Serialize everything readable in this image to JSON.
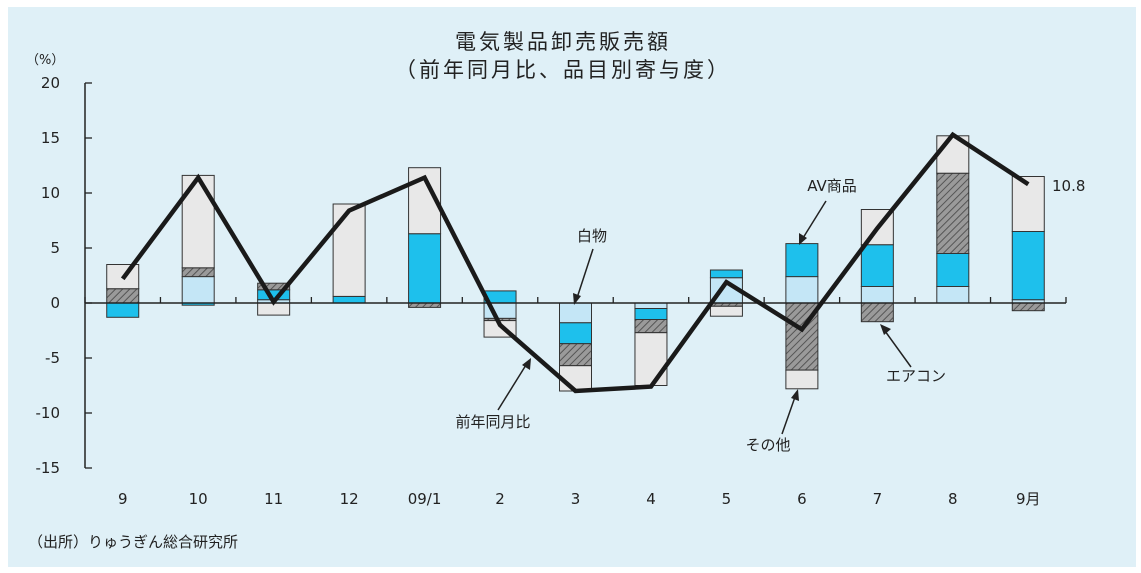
{
  "chart_data": {
    "type": "bar",
    "stacked": true,
    "title": "電気製品卸売販売額",
    "subtitle": "（前年同月比、品目別寄与度）",
    "ylabel": "（%）",
    "ylim": [
      -15,
      20
    ],
    "yticks": [
      "20",
      "15",
      "10",
      "5",
      "0",
      "-5",
      "-10",
      "-15"
    ],
    "categories": [
      "9",
      "10",
      "11",
      "12",
      "09/1",
      "2",
      "3",
      "4",
      "5",
      "6",
      "7",
      "8",
      "9月"
    ],
    "series": [
      {
        "name": "白物",
        "color": "#c4e6f6",
        "hatch": false,
        "values": [
          0,
          2.4,
          0.3,
          0,
          0,
          -1.4,
          -1.8,
          -0.5,
          2.3,
          2.4,
          1.5,
          1.5,
          0.3
        ]
      },
      {
        "name": "AV商品",
        "color": "#1ec0ec",
        "hatch": false,
        "values": [
          -1.3,
          -0.2,
          0.9,
          0.6,
          6.3,
          1.1,
          -1.9,
          -1.0,
          0.7,
          3.0,
          3.8,
          3.0,
          6.2
        ]
      },
      {
        "name": "エアコン",
        "color": "#9a9a9a",
        "hatch": true,
        "values": [
          1.3,
          0.8,
          0.6,
          0,
          -0.4,
          -0.2,
          -2.0,
          -1.2,
          -0.3,
          -6.1,
          -1.7,
          7.3,
          -0.7
        ]
      },
      {
        "name": "その他",
        "color": "#e8e8e8",
        "hatch": false,
        "values": [
          2.2,
          8.4,
          -1.1,
          8.4,
          6.0,
          -1.5,
          -2.3,
          -4.8,
          -0.9,
          -1.7,
          3.2,
          3.4,
          5.0
        ]
      }
    ],
    "line": {
      "name": "前年同月比",
      "values": [
        2.2,
        11.4,
        0.1,
        8.4,
        11.4,
        -2.0,
        -8.0,
        -7.6,
        1.9,
        -2.4,
        6.8,
        15.3,
        10.8
      ]
    },
    "annotations": {
      "white_goods": "白物",
      "av": "AV商品",
      "aircon": "エアコン",
      "other": "その他",
      "yoy": "前年同月比",
      "last_value": "10.8"
    },
    "source": "（出所）りゅうぎん総合研究所",
    "grid": false
  }
}
